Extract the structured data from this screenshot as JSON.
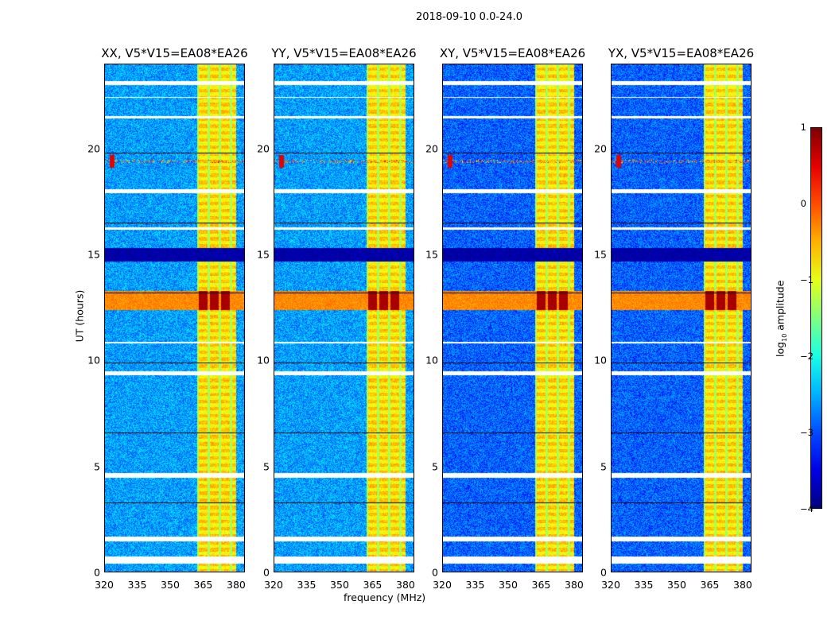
{
  "chart_data": {
    "type": "heatmap",
    "title": "2018-09-10 0.0-24.0",
    "xlabel": "frequency (MHz)",
    "ylabel": "UT (hours)",
    "xlim": [
      320,
      384
    ],
    "ylim": [
      0,
      24
    ],
    "xticks": [
      "320",
      "335",
      "350",
      "365",
      "380"
    ],
    "yticks": [
      "0",
      "5",
      "10",
      "15",
      "20"
    ],
    "panels": [
      {
        "title": "XX, V5*V15=EA08*EA26"
      },
      {
        "title": "YY, V5*V15=EA08*EA26"
      },
      {
        "title": "XY, V5*V15=EA08*EA26"
      },
      {
        "title": "YX, V5*V15=EA08*EA26"
      }
    ],
    "colorbar": {
      "label_prefix": "log",
      "label_sub": "10",
      "label_suffix": " amplitude",
      "range": [
        -4,
        1
      ],
      "ticks": [
        "1",
        "0",
        "−1",
        "−2",
        "−3",
        "−4"
      ],
      "colormap": "jet"
    },
    "features": {
      "rfi_band_mhz": [
        362,
        380
      ],
      "strong_rfi_hours": [
        12.4,
        13.3
      ],
      "low_amplitude_hours": [
        14.7,
        15.3
      ],
      "flagged_hours": [
        [
          0.45,
          0.75
        ],
        [
          1.5,
          1.7
        ],
        [
          4.5,
          4.7
        ],
        [
          23.0,
          23.2
        ],
        [
          22.4,
          22.45
        ],
        [
          21.45,
          21.55
        ],
        [
          10.8,
          10.9
        ],
        [
          9.3,
          9.5
        ],
        [
          17.9,
          18.1
        ],
        [
          16.2,
          16.3
        ]
      ],
      "rfi_spike_hour": 19.4
    }
  }
}
